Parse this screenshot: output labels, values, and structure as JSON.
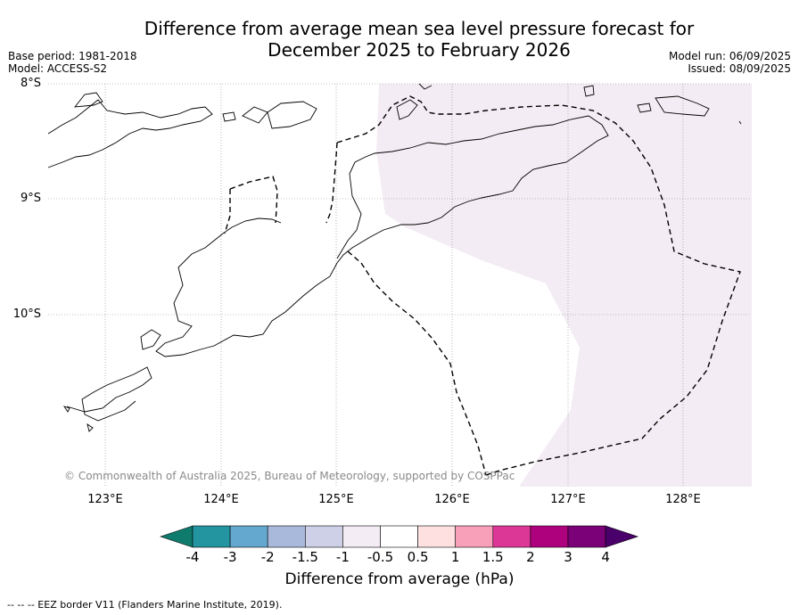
{
  "title": "Difference from average mean sea level pressure forecast for\nDecember 2025 to February 2026",
  "meta_left": {
    "base_period": "Base period: 1981-2018",
    "model": "Model: ACCESS-S2"
  },
  "meta_right": {
    "model_run": "Model run: 06/09/2025",
    "issued": "Issued: 08/09/2025"
  },
  "latitude_labels": [
    "8°S",
    "9°S",
    "10°S"
  ],
  "longitude_labels": [
    "123°E",
    "124°E",
    "125°E",
    "126°E",
    "127°E",
    "128°E"
  ],
  "copyright": "© Commonwealth of Australia 2025, Bureau of Meteorology, supported by COSPPac",
  "colorbar": {
    "ticks": [
      "-4",
      "-3",
      "-2",
      "-1.5",
      "-1",
      "-0.5",
      "0.5",
      "1",
      "1.5",
      "2",
      "3",
      "4"
    ],
    "colors": [
      "#0f7b6c",
      "#2395a0",
      "#64a7cf",
      "#a8b9db",
      "#cdd0e6",
      "#f4ecf4",
      "#ffffff",
      "#fde0df",
      "#f89fba",
      "#dc3797",
      "#ae017e",
      "#7a0177",
      "#49006a"
    ],
    "label": "Difference from average (hPa)"
  },
  "map_shading_color": "#f4ecf4",
  "footnote": "-- --  -- EEZ border V11 (Flanders Marine Institute, 2019)."
}
